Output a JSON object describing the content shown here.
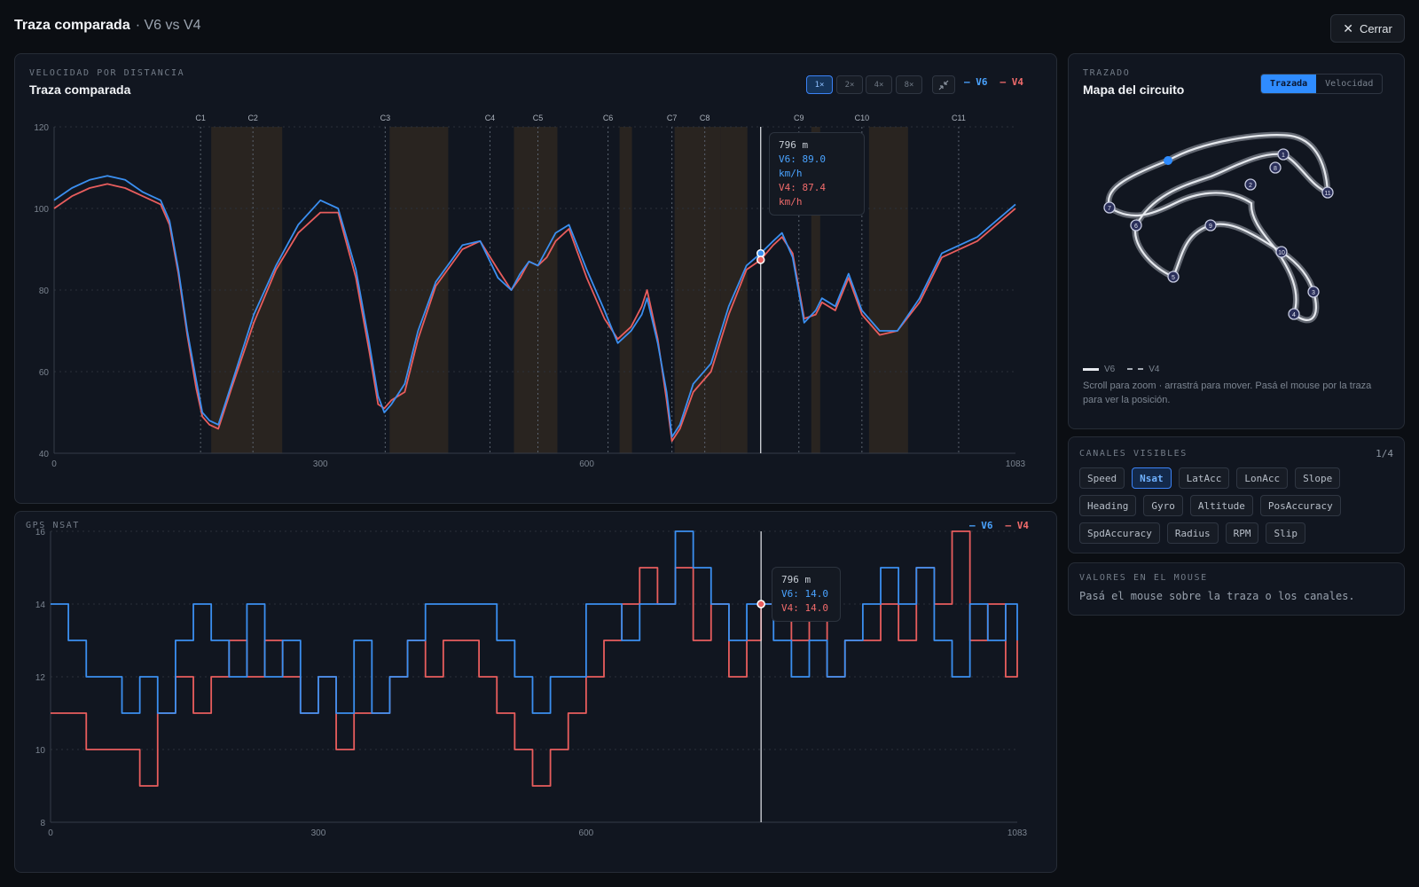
{
  "header": {
    "title": "Traza comparada",
    "subtitle": "· V6 vs V4",
    "close_label": "Cerrar"
  },
  "speed_panel": {
    "eyebrow": "VELOCIDAD POR DISTANCIA",
    "title": "Traza comparada",
    "zoom_buttons": [
      "1×",
      "2×",
      "4×",
      "8×"
    ],
    "zoom_active": "1×",
    "legend": [
      "V6",
      "V4"
    ],
    "tooltip": {
      "dist": "796 m",
      "a": "V6: 89.0 km/h",
      "b": "V4: 87.4 km/h"
    }
  },
  "nsat_panel": {
    "eyebrow": "GPS NSAT",
    "legend": [
      "V6",
      "V4"
    ],
    "tooltip": {
      "dist": "796 m",
      "a": "V6: 14.0",
      "b": "V4: 14.0"
    }
  },
  "map_panel": {
    "eyebrow": "TRAZADO",
    "title": "Mapa del circuito",
    "tabs": [
      "Trazada",
      "Velocidad"
    ],
    "active_tab": "Trazada",
    "legend": [
      "V6",
      "V4"
    ],
    "hint": "Scroll para zoom · arrastrá para mover. Pasá el mouse por la traza para ver la posición.",
    "corner_markers": [
      "1",
      "2",
      "3",
      "4",
      "5",
      "6",
      "7",
      "8",
      "9",
      "10",
      "11"
    ]
  },
  "channels_panel": {
    "eyebrow": "CANALES VISIBLES",
    "count": "1/4",
    "chips": [
      "Speed",
      "Nsat",
      "LatAcc",
      "LonAcc",
      "Slope",
      "Heading",
      "Gyro",
      "Altitude",
      "PosAccuracy",
      "SpdAccuracy",
      "Radius",
      "RPM",
      "Slip"
    ],
    "active": [
      "Nsat"
    ]
  },
  "values_panel": {
    "eyebrow": "VALORES EN EL MOUSE",
    "text": "Pasá el mouse sobre la traza o los canales."
  },
  "colors": {
    "v6": "#3b8ff0",
    "v4": "#e85d5d",
    "accent": "#2f8cff",
    "bg": "#0b0e13",
    "panel": "#111620"
  },
  "chart_data": [
    {
      "type": "line",
      "title": "Traza comparada",
      "xlabel": "",
      "ylabel": "",
      "xlim": [
        0,
        1083
      ],
      "ylim": [
        40,
        120
      ],
      "x_ticks": [
        0,
        300,
        600,
        1083
      ],
      "y_ticks": [
        40,
        60,
        80,
        100,
        120
      ],
      "cursor_x": 796,
      "corners": [
        {
          "label": "C1",
          "x": 165
        },
        {
          "label": "C2",
          "x": 224
        },
        {
          "label": "C3",
          "x": 373
        },
        {
          "label": "C4",
          "x": 491
        },
        {
          "label": "C5",
          "x": 545
        },
        {
          "label": "C6",
          "x": 624
        },
        {
          "label": "C7",
          "x": 696
        },
        {
          "label": "C8",
          "x": 733
        },
        {
          "label": "C9",
          "x": 839
        },
        {
          "label": "C10",
          "x": 910
        },
        {
          "label": "C11",
          "x": 1019
        }
      ],
      "zones": [
        [
          177,
          257
        ],
        [
          378,
          444
        ],
        [
          518,
          567
        ],
        [
          637,
          651
        ],
        [
          699,
          751
        ],
        [
          751,
          781
        ],
        [
          853,
          863
        ],
        [
          918,
          962
        ]
      ],
      "x": [
        0,
        20,
        40,
        60,
        80,
        100,
        120,
        130,
        140,
        150,
        160,
        167,
        175,
        185,
        200,
        225,
        250,
        275,
        300,
        320,
        340,
        355,
        365,
        372,
        380,
        395,
        410,
        430,
        460,
        480,
        500,
        515,
        525,
        535,
        545,
        555,
        565,
        580,
        600,
        620,
        635,
        650,
        662,
        668,
        680,
        690,
        696,
        705,
        720,
        740,
        760,
        780,
        796,
        810,
        820,
        832,
        845,
        858,
        865,
        880,
        895,
        910,
        930,
        950,
        975,
        1000,
        1040,
        1083
      ],
      "series": [
        {
          "name": "V6",
          "values": [
            102,
            105,
            107,
            108,
            107,
            104,
            102,
            97,
            85,
            70,
            58,
            50,
            48,
            47,
            57,
            74,
            86,
            96,
            102,
            100,
            85,
            67,
            54,
            50,
            52,
            57,
            70,
            82,
            91,
            92,
            83,
            80,
            84,
            87,
            86,
            90,
            94,
            96,
            85,
            75,
            67,
            70,
            74,
            78,
            67,
            55,
            44,
            47,
            57,
            62,
            76,
            86,
            89,
            92,
            94,
            88,
            72,
            75,
            78,
            76,
            84,
            75,
            70,
            70,
            78,
            89,
            93,
            101
          ]
        },
        {
          "name": "V4",
          "values": [
            100,
            103,
            105,
            106,
            105,
            103,
            101,
            96,
            84,
            69,
            56,
            49,
            47,
            46,
            56,
            72,
            85,
            94,
            99,
            99,
            83,
            65,
            52,
            51,
            53,
            55,
            68,
            81,
            90,
            92,
            85,
            80,
            83,
            87,
            86,
            88,
            92,
            95,
            83,
            73,
            68,
            71,
            76,
            80,
            68,
            53,
            43,
            46,
            55,
            60,
            74,
            85,
            87.4,
            91,
            93,
            89,
            73,
            74,
            77,
            75,
            83,
            74,
            69,
            70,
            77,
            88,
            92,
            100
          ]
        }
      ]
    },
    {
      "type": "line",
      "title": "GPS NSAT",
      "xlabel": "",
      "ylabel": "",
      "xlim": [
        0,
        1083
      ],
      "ylim": [
        8,
        16
      ],
      "x_ticks": [
        0,
        300,
        600,
        1083
      ],
      "y_ticks": [
        8,
        10,
        12,
        14,
        16
      ],
      "cursor_x": 796,
      "x": [
        0,
        20,
        40,
        60,
        80,
        100,
        120,
        140,
        160,
        180,
        200,
        220,
        240,
        260,
        280,
        300,
        320,
        340,
        360,
        380,
        400,
        420,
        440,
        460,
        480,
        500,
        520,
        540,
        560,
        580,
        600,
        620,
        640,
        660,
        680,
        700,
        720,
        740,
        760,
        780,
        796,
        810,
        830,
        850,
        870,
        890,
        910,
        930,
        950,
        970,
        990,
        1010,
        1030,
        1050,
        1070,
        1083
      ],
      "series": [
        {
          "name": "V6",
          "values": [
            14,
            13,
            12,
            12,
            11,
            12,
            11,
            13,
            14,
            13,
            12,
            14,
            12,
            13,
            11,
            12,
            11,
            13,
            11,
            12,
            13,
            14,
            14,
            14,
            14,
            13,
            12,
            11,
            12,
            12,
            14,
            14,
            13,
            14,
            14,
            16,
            15,
            14,
            13,
            14,
            14,
            13,
            12,
            13,
            12,
            13,
            14,
            15,
            14,
            15,
            13,
            12,
            14,
            13,
            14,
            13
          ]
        },
        {
          "name": "V4",
          "values": [
            11,
            11,
            10,
            10,
            10,
            9,
            11,
            12,
            11,
            12,
            13,
            12,
            13,
            12,
            11,
            12,
            10,
            11,
            11,
            12,
            13,
            12,
            13,
            13,
            12,
            11,
            10,
            9,
            10,
            11,
            12,
            13,
            14,
            15,
            14,
            15,
            13,
            14,
            12,
            13,
            14,
            14,
            13,
            14,
            12,
            13,
            13,
            14,
            13,
            15,
            14,
            16,
            13,
            14,
            12,
            13
          ]
        }
      ]
    }
  ]
}
